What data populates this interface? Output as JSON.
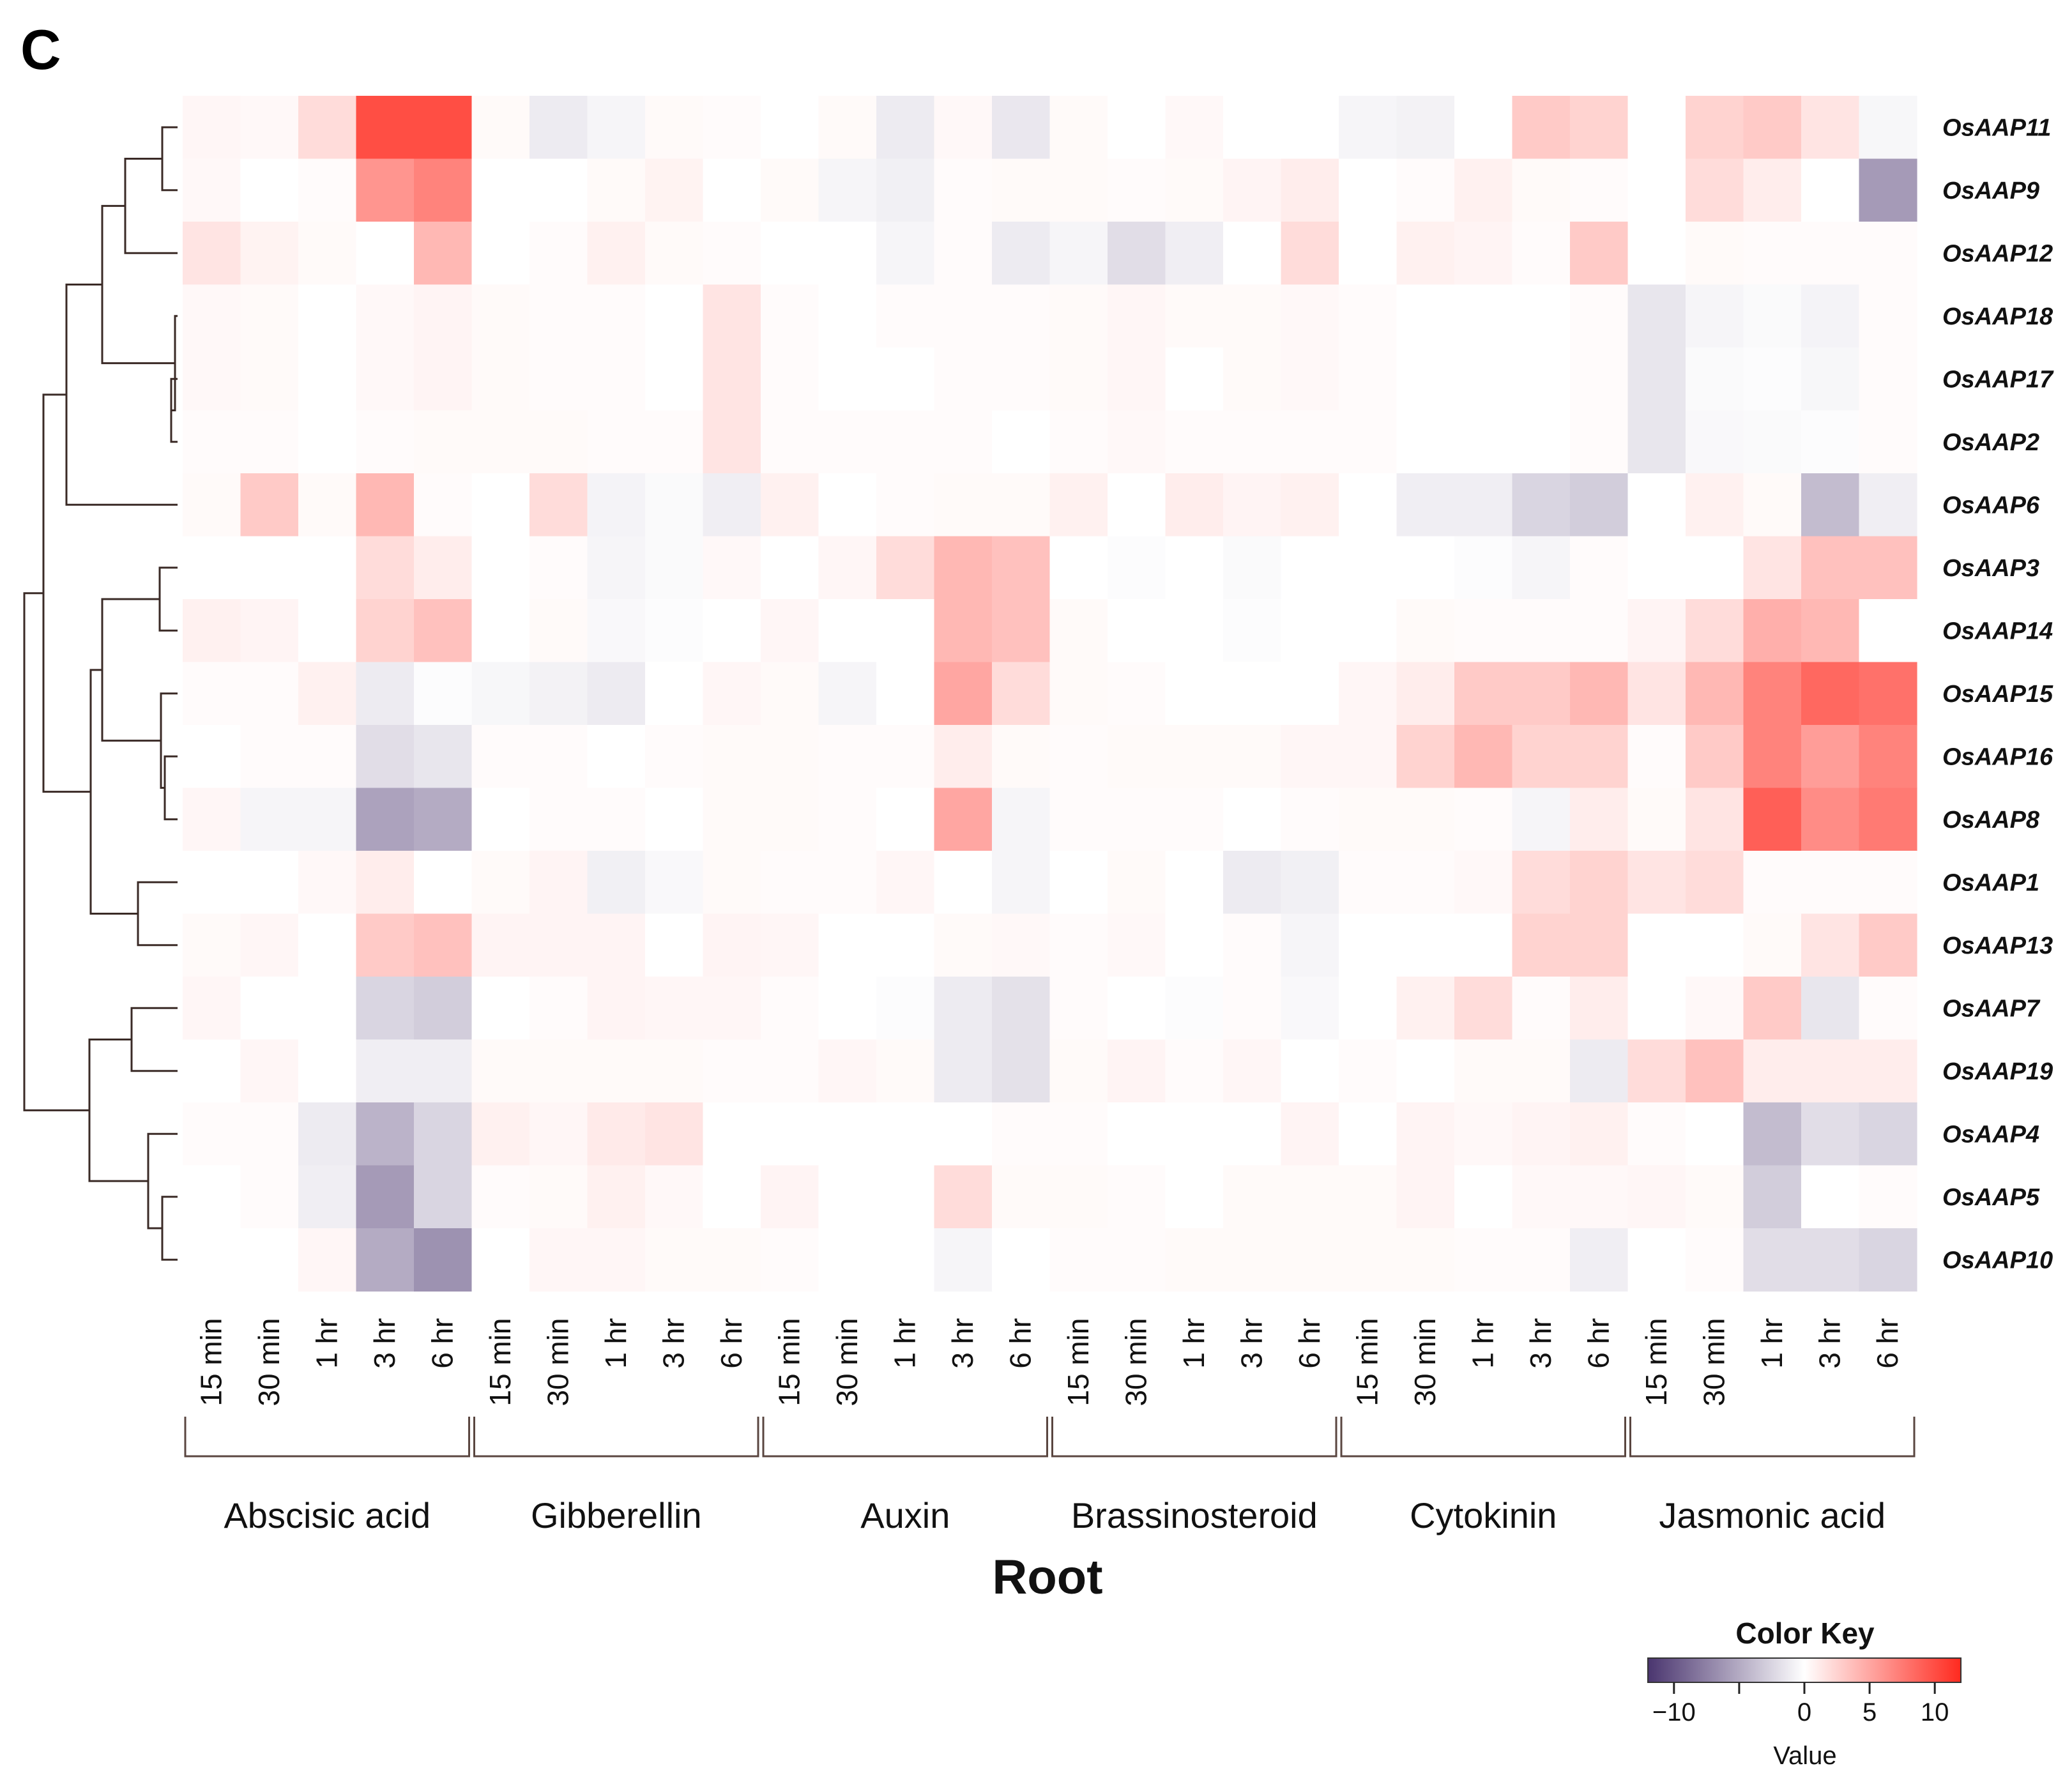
{
  "panel_label": "C",
  "chart_data": {
    "type": "heatmap",
    "title": "",
    "xlabel": "Root",
    "timepoints": [
      "15 min",
      "30 min",
      "1 hr",
      "3 hr",
      "6 hr"
    ],
    "groups": [
      "Abscisic acid",
      "Gibberellin",
      "Auxin",
      "Brassinosteroid",
      "Cytokinin",
      "Jasmonic acid"
    ],
    "rows": [
      "OsAAP11",
      "OsAAP9",
      "OsAAP12",
      "OsAAP18",
      "OsAAP17",
      "OsAAP2",
      "OsAAP6",
      "OsAAP3",
      "OsAAP14",
      "OsAAP15",
      "OsAAP16",
      "OsAAP8",
      "OsAAP1",
      "OsAAP13",
      "OsAAP7",
      "OsAAP19",
      "OsAAP4",
      "OsAAP5",
      "OsAAP10"
    ],
    "values": [
      [
        0.5,
        0.4,
        2.0,
        10.0,
        10.0,
        0.3,
        -1.2,
        -0.6,
        0.3,
        0.2,
        0,
        0.3,
        -1.2,
        0.4,
        -1.4,
        0.3,
        0,
        0.4,
        0,
        0,
        -0.6,
        -0.8,
        0,
        3.0,
        2.5,
        0,
        2.5,
        3.0,
        1.5,
        -0.5
      ],
      [
        0.4,
        0,
        0.2,
        6.0,
        7.0,
        0,
        0,
        0.3,
        0.7,
        0,
        0.3,
        -0.6,
        -0.9,
        0.2,
        0.3,
        0.3,
        0.2,
        0.3,
        0.6,
        1.0,
        0,
        0.2,
        0.8,
        0.3,
        0.2,
        0,
        2.0,
        1.0,
        0,
        -6.0
      ],
      [
        1.5,
        0.7,
        0.3,
        0,
        4.0,
        0,
        0.2,
        0.8,
        0.3,
        0.2,
        0,
        0,
        -0.6,
        0.2,
        -1.2,
        -0.6,
        -2.0,
        -1.0,
        0,
        2.0,
        0,
        0.8,
        0.6,
        0.2,
        3.0,
        0,
        0.3,
        0.2,
        0.2,
        0.2
      ],
      [
        0.4,
        0.3,
        0,
        0.4,
        0.6,
        0.3,
        0.2,
        0.2,
        0,
        1.5,
        0.2,
        0,
        0.2,
        0.2,
        0.2,
        0.3,
        0.5,
        0.3,
        0.3,
        0.4,
        0.2,
        0,
        0,
        0,
        0.2,
        -1.5,
        -0.6,
        -0.3,
        -0.7,
        0.2
      ],
      [
        0.4,
        0.3,
        0,
        0.4,
        0.6,
        0.3,
        0.2,
        0.2,
        0,
        1.5,
        0.2,
        0,
        0,
        0.2,
        0.2,
        0.3,
        0.5,
        0,
        0.3,
        0.4,
        0.2,
        0,
        0,
        0,
        0.2,
        -1.5,
        -0.3,
        -0.2,
        -0.5,
        0.2
      ],
      [
        0.2,
        0.2,
        0,
        0.2,
        0.3,
        0.3,
        0.3,
        0.2,
        0.2,
        1.5,
        0.2,
        0.2,
        0.2,
        0.2,
        0,
        0.2,
        0.4,
        0.2,
        0.2,
        0.2,
        0.2,
        0,
        0,
        0,
        0.2,
        -1.5,
        -0.4,
        -0.3,
        -0.2,
        0.2
      ],
      [
        0.3,
        3.0,
        0.3,
        4.0,
        0.2,
        0,
        2.0,
        -0.7,
        -0.3,
        -1.0,
        0.8,
        0,
        0.2,
        0.3,
        0.3,
        0.8,
        0,
        1.0,
        0.6,
        0.8,
        0,
        -1.0,
        -1.0,
        -2.5,
        -3.0,
        0,
        0.8,
        0.3,
        -4.0,
        -1.0
      ],
      [
        0,
        0,
        0,
        2.0,
        1.0,
        0,
        0.2,
        -0.6,
        -0.3,
        0.4,
        0,
        0.5,
        2.0,
        4.0,
        3.5,
        0,
        -0.2,
        0,
        -0.3,
        0,
        0,
        0,
        -0.2,
        -0.6,
        0.2,
        0,
        0,
        1.5,
        3.5,
        3.5
      ],
      [
        0.8,
        0.6,
        0,
        2.5,
        3.5,
        0,
        0.3,
        -0.4,
        -0.2,
        0,
        0.5,
        0,
        0,
        4.0,
        3.5,
        0.3,
        0,
        0,
        -0.2,
        0,
        0,
        0.3,
        0.2,
        0.2,
        0.2,
        0.6,
        2.0,
        4.5,
        4.0,
        0
      ],
      [
        0.2,
        0.2,
        0.8,
        -1.2,
        -0.2,
        -0.5,
        -0.8,
        -1.2,
        0,
        0.5,
        0.3,
        -0.6,
        0,
        5.0,
        2.0,
        0.3,
        0.2,
        0,
        0,
        0,
        0.5,
        1.0,
        3.0,
        3.0,
        4.0,
        1.5,
        4.0,
        7.0,
        8.5,
        8.0
      ],
      [
        0,
        0.2,
        0.2,
        -2.0,
        -1.5,
        0.2,
        0.2,
        0,
        0.2,
        0.3,
        0.3,
        0.2,
        0.2,
        1.0,
        0.3,
        0.2,
        0.3,
        0.3,
        0.3,
        0.5,
        0.5,
        2.5,
        4.0,
        2.5,
        2.5,
        0.2,
        3.0,
        7.0,
        5.5,
        7.0
      ],
      [
        0.5,
        -0.6,
        -0.6,
        -5.5,
        -5.0,
        0,
        0.2,
        0.2,
        0,
        0.3,
        0.3,
        0.2,
        0,
        5.0,
        -0.6,
        0.2,
        0.2,
        0.2,
        0,
        0.2,
        0.3,
        0.3,
        0.2,
        -0.6,
        1.0,
        0.3,
        1.5,
        9.0,
        6.5,
        7.5
      ],
      [
        0,
        0,
        0.4,
        1.0,
        0,
        0.3,
        0.6,
        -0.9,
        -0.4,
        0.3,
        0.2,
        0.2,
        0.5,
        0,
        -0.6,
        0,
        0.3,
        0,
        -1.2,
        -0.9,
        0.2,
        0.2,
        0.4,
        2.0,
        2.5,
        1.5,
        2.0,
        0.2,
        0.2,
        0.2
      ],
      [
        0.3,
        0.5,
        0,
        3.0,
        3.5,
        0.6,
        0.6,
        0.6,
        0,
        0.6,
        0.5,
        0,
        0,
        0.3,
        0.4,
        0.2,
        0.4,
        0,
        0.2,
        -0.6,
        0,
        0,
        0,
        2.5,
        2.5,
        0,
        0,
        0.3,
        1.5,
        3.0
      ],
      [
        0.5,
        0,
        0,
        -2.5,
        -3.0,
        0,
        0.2,
        0.6,
        0.5,
        0.5,
        0.2,
        0,
        -0.2,
        -1.2,
        -1.8,
        0.2,
        0,
        -0.2,
        0.2,
        -0.4,
        0,
        0.8,
        2.0,
        0.2,
        1.0,
        0,
        0.4,
        3.0,
        -1.5,
        0.2
      ],
      [
        0,
        0.5,
        0,
        -1.0,
        -1.0,
        0.3,
        0.3,
        0.3,
        0.3,
        0.2,
        0.2,
        0.5,
        0.3,
        -1.2,
        -1.8,
        0.3,
        0.6,
        0.2,
        0.5,
        0,
        0.2,
        0,
        0.3,
        0.3,
        -1.2,
        2.0,
        3.5,
        1.0,
        1.0,
        1.0
      ],
      [
        0.2,
        0.2,
        -1.2,
        -4.5,
        -2.5,
        0.8,
        0.5,
        1.2,
        1.5,
        0,
        0,
        0,
        0,
        0,
        0.2,
        0.2,
        0,
        0,
        0,
        0.6,
        0,
        0.6,
        0.4,
        0.6,
        0.8,
        0.2,
        0,
        -4.0,
        -2.0,
        -2.5
      ],
      [
        0,
        0.2,
        -1.0,
        -6.0,
        -2.5,
        0.2,
        0.3,
        0.8,
        0.4,
        0,
        0.6,
        0,
        0,
        2.0,
        0.3,
        0.3,
        0.2,
        0,
        0.3,
        0.3,
        0.3,
        0.6,
        0,
        0.4,
        0.4,
        0.5,
        0.3,
        -3.0,
        0,
        0.2
      ],
      [
        0,
        0,
        0.5,
        -5.0,
        -6.5,
        0,
        0.5,
        0.5,
        0.3,
        0.3,
        0.2,
        0,
        0,
        -0.6,
        0,
        0.2,
        0.2,
        0.3,
        0.3,
        0.3,
        0.3,
        0.3,
        0.2,
        0.2,
        -1.0,
        0,
        0.2,
        -2.0,
        -2.0,
        -2.5
      ]
    ],
    "color_key": {
      "title": "Color Key",
      "label": "Value",
      "range": [
        -12,
        12
      ],
      "ticks": [
        -10,
        -5,
        0,
        5,
        10
      ],
      "tick_labels": [
        "−10",
        "",
        "0",
        "5",
        "10"
      ],
      "low_color": "#4a356f",
      "mid_color": "#ffffff",
      "high_color": "#ff2a1f"
    }
  }
}
